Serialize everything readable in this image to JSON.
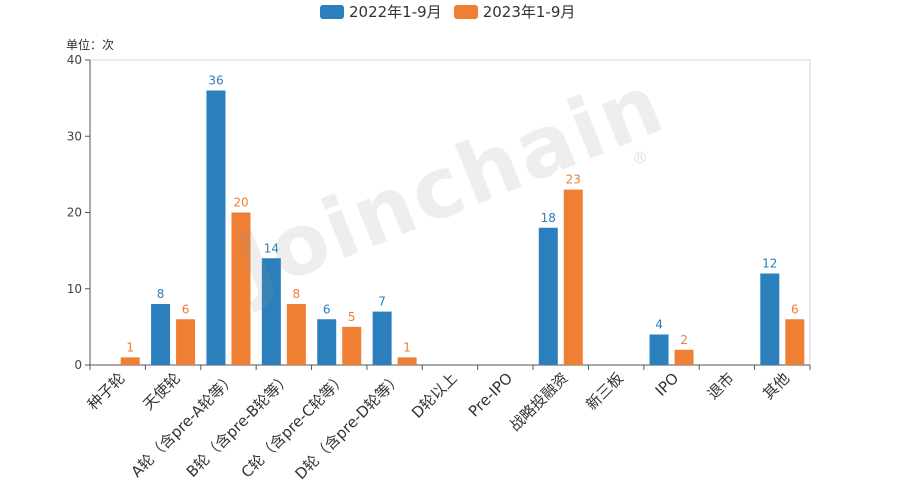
{
  "legend": [
    {
      "name": "2022年1-9月",
      "color": "#2b7fbc"
    },
    {
      "name": "2023年1-9月",
      "color": "#ee7f33"
    }
  ],
  "unit_label": "单位：次",
  "watermark": "Joinchain",
  "watermark_mark": "®",
  "chart_data": {
    "type": "bar",
    "categories": [
      "种子轮",
      "天使轮",
      "A轮（含pre-A轮等）",
      "B轮（含pre-B轮等）",
      "C轮（含pre-C轮等）",
      "D轮（含pre-D轮等）",
      "D轮以上",
      "Pre-IPO",
      "战略投融资",
      "新三板",
      "IPO",
      "退市",
      "其他"
    ],
    "series": [
      {
        "name": "2022年1-9月",
        "color": "#2b7fbc",
        "values": [
          0,
          8,
          36,
          14,
          6,
          7,
          0,
          0,
          18,
          0,
          4,
          0,
          12
        ]
      },
      {
        "name": "2023年1-9月",
        "color": "#ee7f33",
        "values": [
          1,
          6,
          20,
          8,
          5,
          1,
          0,
          0,
          23,
          0,
          2,
          0,
          6
        ]
      }
    ],
    "ylim": [
      0,
      40
    ],
    "yticks": [
      0,
      10,
      20,
      30,
      40
    ],
    "ylabel": "单位：次",
    "grid": false,
    "legend_position": "top"
  }
}
